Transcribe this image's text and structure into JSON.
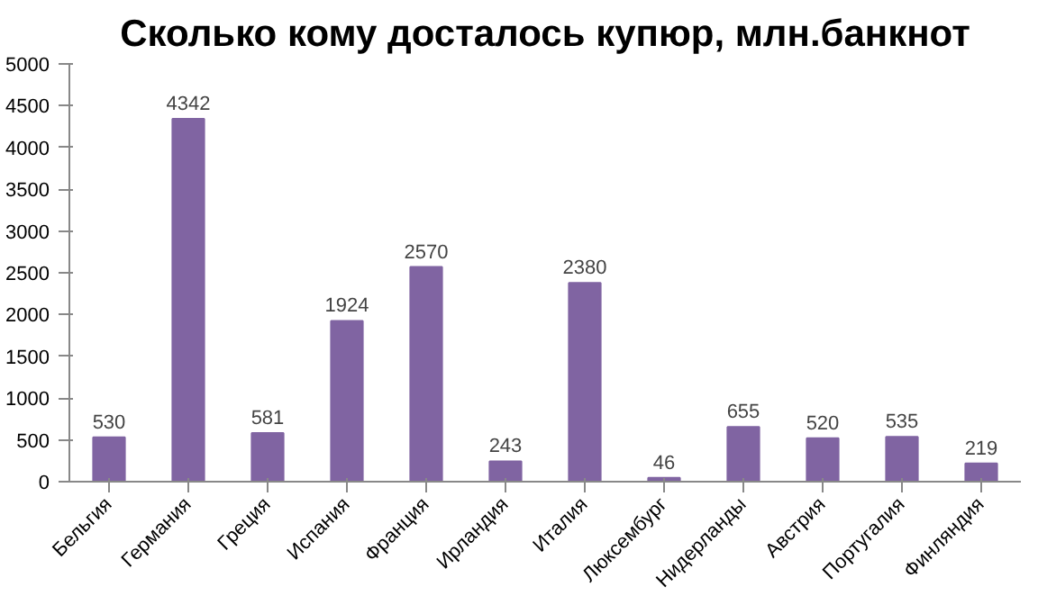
{
  "chart_data": {
    "type": "bar",
    "title": "Сколько кому досталось купюр, млн.банкнот",
    "categories": [
      "Бельгия",
      "Германия",
      "Греция",
      "Испания",
      "Франция",
      "Ирландия",
      "Италия",
      "Люксембург",
      "Нидерланды",
      "Австрия",
      "Португалия",
      "Финляндия"
    ],
    "values": [
      530,
      4342,
      581,
      1924,
      2570,
      243,
      2380,
      46,
      655,
      520,
      535,
      219
    ],
    "color": "#8064a2",
    "data_labels": true,
    "ylim": [
      0,
      5000
    ],
    "yticks": [
      0,
      500,
      1000,
      1500,
      2000,
      2500,
      3000,
      3500,
      4000,
      4500,
      5000
    ]
  }
}
